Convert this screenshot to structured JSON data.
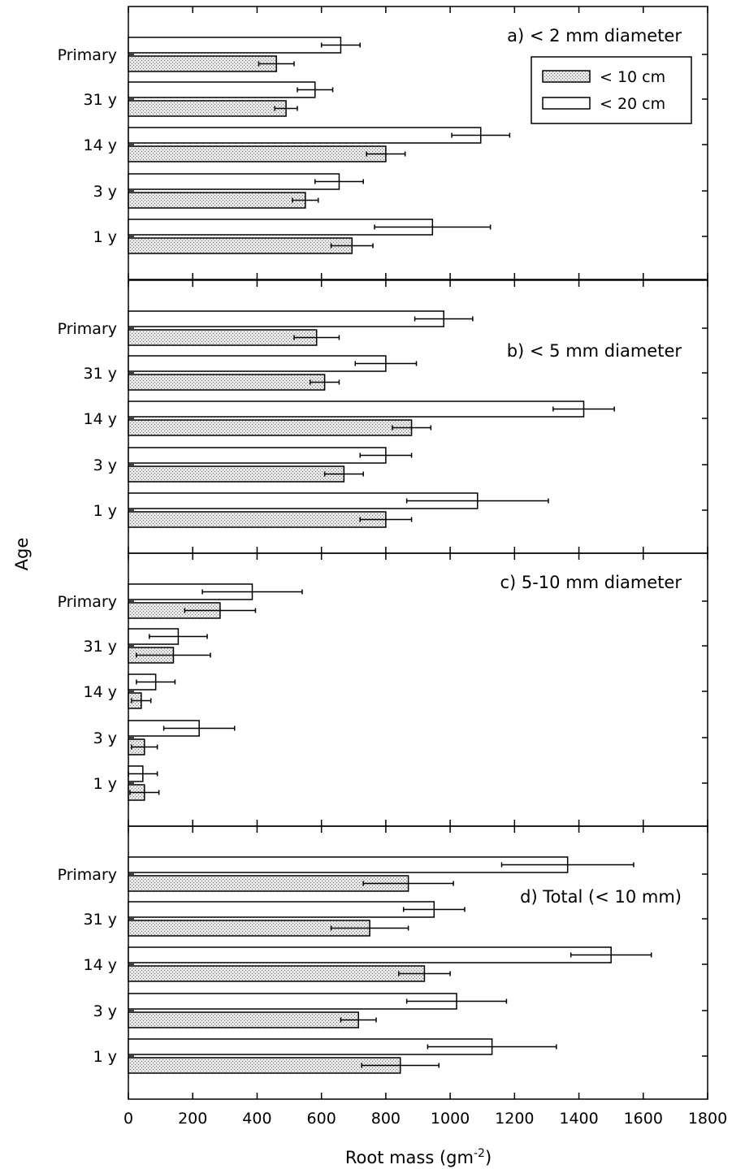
{
  "chart_data": {
    "type": "bar",
    "orientation": "horizontal",
    "xlabel": "Root mass (gm",
    "xlabel_superscript": "-2",
    "xlabel_suffix": ")",
    "ylabel": "Age",
    "xlim": [
      0,
      1800
    ],
    "x_ticks": [
      "0",
      "200",
      "400",
      "600",
      "800",
      "1000",
      "1200",
      "1400",
      "1600",
      "1800"
    ],
    "x_tick_values": [
      0,
      200,
      400,
      600,
      800,
      1000,
      1200,
      1400,
      1600,
      1800
    ],
    "categories": [
      "Primary",
      "31 y",
      "14 y",
      "3 y",
      "1 y"
    ],
    "legend": {
      "position": "top-right",
      "entries": [
        {
          "name": "< 10 cm",
          "pattern": "stippled"
        },
        {
          "name": "< 20 cm",
          "pattern": "white"
        }
      ]
    },
    "panels": [
      {
        "label": "a) < 2 mm diameter",
        "label_position": "top-right",
        "series": [
          {
            "name": "< 10 cm",
            "values": [
              460,
              490,
              800,
              550,
              695
            ],
            "errors": [
              55,
              35,
              60,
              40,
              65
            ]
          },
          {
            "name": "< 20 cm",
            "values": [
              660,
              580,
              1095,
              655,
              945
            ],
            "errors": [
              60,
              55,
              90,
              75,
              180
            ]
          }
        ]
      },
      {
        "label": "b) < 5 mm diameter",
        "label_position": "upper-right",
        "series": [
          {
            "name": "< 10 cm",
            "values": [
              585,
              610,
              880,
              670,
              800
            ],
            "errors": [
              70,
              45,
              60,
              60,
              80
            ]
          },
          {
            "name": "< 20 cm",
            "values": [
              980,
              800,
              1415,
              800,
              1085
            ],
            "errors": [
              90,
              95,
              95,
              80,
              220
            ]
          }
        ]
      },
      {
        "label": "c) 5-10 mm diameter",
        "label_position": "top-right",
        "series": [
          {
            "name": "< 10 cm",
            "values": [
              285,
              140,
              40,
              50,
              50
            ],
            "errors": [
              110,
              115,
              30,
              40,
              45
            ]
          },
          {
            "name": "< 20 cm",
            "values": [
              385,
              155,
              85,
              220,
              45
            ],
            "errors": [
              155,
              90,
              60,
              110,
              45
            ]
          }
        ]
      },
      {
        "label": "d) Total (< 10 mm)",
        "label_position": "upper-right",
        "series": [
          {
            "name": "< 10 cm",
            "values": [
              870,
              750,
              920,
              715,
              845
            ],
            "errors": [
              140,
              120,
              80,
              55,
              120
            ]
          },
          {
            "name": "< 20 cm",
            "values": [
              1365,
              950,
              1500,
              1020,
              1130
            ],
            "errors": [
              205,
              95,
              125,
              155,
              200
            ]
          }
        ]
      }
    ]
  }
}
